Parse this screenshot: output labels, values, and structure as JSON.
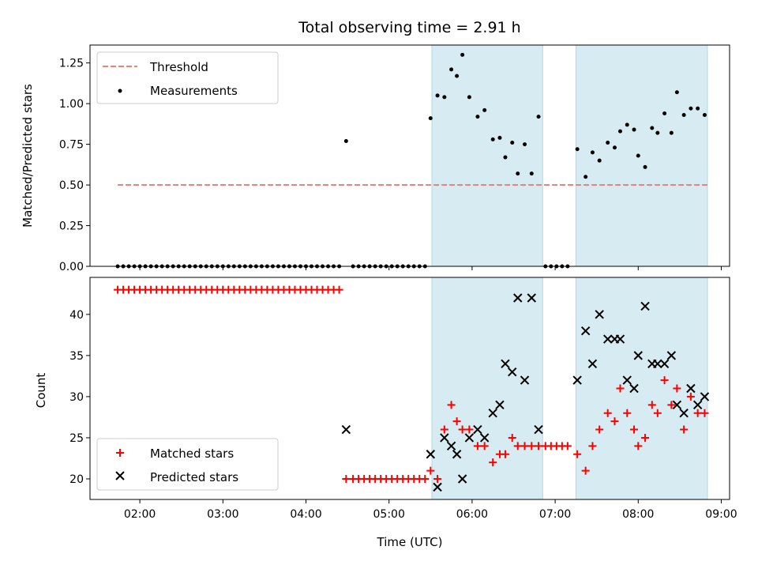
{
  "title": "Total observing time = 2.91 h",
  "colors": {
    "threshold": "#f08080",
    "measurements": "#000000",
    "matched": "#ff0000",
    "predicted": "#000000",
    "span_fill": "#add8e6"
  },
  "chart_data": [
    {
      "type": "scatter",
      "ylabel": "Matched/Predicted stars",
      "xlim": [
        "01:24",
        "09:06"
      ],
      "ylim": [
        0,
        1.36
      ],
      "yticks": [
        0.0,
        0.25,
        0.5,
        0.75,
        1.0,
        1.25
      ],
      "ytick_labels": [
        "0.00",
        "0.25",
        "0.50",
        "0.75",
        "1.00",
        "1.25"
      ],
      "observing_spans": [
        [
          "05:31",
          "06:51"
        ],
        [
          "07:15",
          "08:50"
        ]
      ],
      "threshold": {
        "name": "Threshold",
        "y": 0.5,
        "x_range": [
          "01:44",
          "08:50"
        ]
      },
      "legend": {
        "location": "top-left",
        "entries": [
          "Threshold",
          "Measurements"
        ]
      },
      "series": [
        {
          "name": "Measurements",
          "points": [
            [
              "01:44",
              0
            ],
            [
              "01:48",
              0
            ],
            [
              "01:52",
              0
            ],
            [
              "01:56",
              0
            ],
            [
              "02:00",
              0
            ],
            [
              "02:04",
              0
            ],
            [
              "02:08",
              0
            ],
            [
              "02:12",
              0
            ],
            [
              "02:16",
              0
            ],
            [
              "02:20",
              0
            ],
            [
              "02:24",
              0
            ],
            [
              "02:28",
              0
            ],
            [
              "02:32",
              0
            ],
            [
              "02:36",
              0
            ],
            [
              "02:40",
              0
            ],
            [
              "02:44",
              0
            ],
            [
              "02:48",
              0
            ],
            [
              "02:52",
              0
            ],
            [
              "02:56",
              0
            ],
            [
              "03:00",
              0
            ],
            [
              "03:04",
              0
            ],
            [
              "03:08",
              0
            ],
            [
              "03:12",
              0
            ],
            [
              "03:16",
              0
            ],
            [
              "03:20",
              0
            ],
            [
              "03:24",
              0
            ],
            [
              "03:28",
              0
            ],
            [
              "03:32",
              0
            ],
            [
              "03:36",
              0
            ],
            [
              "03:40",
              0
            ],
            [
              "03:44",
              0
            ],
            [
              "03:48",
              0
            ],
            [
              "03:52",
              0
            ],
            [
              "03:56",
              0
            ],
            [
              "04:00",
              0
            ],
            [
              "04:04",
              0
            ],
            [
              "04:08",
              0
            ],
            [
              "04:12",
              0
            ],
            [
              "04:16",
              0
            ],
            [
              "04:20",
              0
            ],
            [
              "04:24",
              0
            ],
            [
              "04:29",
              0.77
            ],
            [
              "04:34",
              0
            ],
            [
              "04:38",
              0
            ],
            [
              "04:42",
              0
            ],
            [
              "04:46",
              0
            ],
            [
              "04:50",
              0
            ],
            [
              "04:54",
              0
            ],
            [
              "04:58",
              0
            ],
            [
              "05:02",
              0
            ],
            [
              "05:06",
              0
            ],
            [
              "05:10",
              0
            ],
            [
              "05:14",
              0
            ],
            [
              "05:18",
              0
            ],
            [
              "05:22",
              0
            ],
            [
              "05:26",
              0
            ],
            [
              "05:30",
              0.91
            ],
            [
              "05:35",
              1.05
            ],
            [
              "05:40",
              1.04
            ],
            [
              "05:45",
              1.21
            ],
            [
              "05:49",
              1.17
            ],
            [
              "05:53",
              1.3
            ],
            [
              "05:58",
              1.04
            ],
            [
              "06:04",
              0.92
            ],
            [
              "06:09",
              0.96
            ],
            [
              "06:15",
              0.78
            ],
            [
              "06:20",
              0.79
            ],
            [
              "06:24",
              0.67
            ],
            [
              "06:29",
              0.76
            ],
            [
              "06:33",
              0.57
            ],
            [
              "06:38",
              0.75
            ],
            [
              "06:43",
              0.57
            ],
            [
              "06:48",
              0.92
            ],
            [
              "06:53",
              0
            ],
            [
              "06:57",
              0
            ],
            [
              "07:01",
              0
            ],
            [
              "07:05",
              0
            ],
            [
              "07:09",
              0
            ],
            [
              "07:16",
              0.72
            ],
            [
              "07:22",
              0.55
            ],
            [
              "07:27",
              0.7
            ],
            [
              "07:32",
              0.65
            ],
            [
              "07:38",
              0.76
            ],
            [
              "07:43",
              0.73
            ],
            [
              "07:47",
              0.83
            ],
            [
              "07:52",
              0.87
            ],
            [
              "07:57",
              0.84
            ],
            [
              "08:00",
              0.68
            ],
            [
              "08:05",
              0.61
            ],
            [
              "08:10",
              0.85
            ],
            [
              "08:14",
              0.82
            ],
            [
              "08:19",
              0.94
            ],
            [
              "08:24",
              0.82
            ],
            [
              "08:28",
              1.07
            ],
            [
              "08:33",
              0.93
            ],
            [
              "08:38",
              0.97
            ],
            [
              "08:43",
              0.97
            ],
            [
              "08:48",
              0.93
            ]
          ]
        }
      ]
    },
    {
      "type": "scatter",
      "xlabel": "Time (UTC)",
      "ylabel": "Count",
      "xlim": [
        "01:24",
        "09:06"
      ],
      "ylim": [
        17.5,
        44.5
      ],
      "xticks": [
        "02:00",
        "03:00",
        "04:00",
        "05:00",
        "06:00",
        "07:00",
        "08:00",
        "09:00"
      ],
      "yticks": [
        20,
        25,
        30,
        35,
        40
      ],
      "ytick_labels": [
        "20",
        "25",
        "30",
        "35",
        "40"
      ],
      "observing_spans": [
        [
          "05:31",
          "06:51"
        ],
        [
          "07:15",
          "08:50"
        ]
      ],
      "legend": {
        "location": "bottom-left",
        "entries": [
          "Matched stars",
          "Predicted stars"
        ]
      },
      "series": [
        {
          "name": "Matched stars",
          "marker": "plus",
          "points": [
            [
              "01:44",
              43
            ],
            [
              "01:48",
              43
            ],
            [
              "01:52",
              43
            ],
            [
              "01:56",
              43
            ],
            [
              "02:00",
              43
            ],
            [
              "02:04",
              43
            ],
            [
              "02:08",
              43
            ],
            [
              "02:12",
              43
            ],
            [
              "02:16",
              43
            ],
            [
              "02:20",
              43
            ],
            [
              "02:24",
              43
            ],
            [
              "02:28",
              43
            ],
            [
              "02:32",
              43
            ],
            [
              "02:36",
              43
            ],
            [
              "02:40",
              43
            ],
            [
              "02:44",
              43
            ],
            [
              "02:48",
              43
            ],
            [
              "02:52",
              43
            ],
            [
              "02:56",
              43
            ],
            [
              "03:00",
              43
            ],
            [
              "03:04",
              43
            ],
            [
              "03:08",
              43
            ],
            [
              "03:12",
              43
            ],
            [
              "03:16",
              43
            ],
            [
              "03:20",
              43
            ],
            [
              "03:24",
              43
            ],
            [
              "03:28",
              43
            ],
            [
              "03:32",
              43
            ],
            [
              "03:36",
              43
            ],
            [
              "03:40",
              43
            ],
            [
              "03:44",
              43
            ],
            [
              "03:48",
              43
            ],
            [
              "03:52",
              43
            ],
            [
              "03:56",
              43
            ],
            [
              "04:00",
              43
            ],
            [
              "04:04",
              43
            ],
            [
              "04:08",
              43
            ],
            [
              "04:12",
              43
            ],
            [
              "04:16",
              43
            ],
            [
              "04:20",
              43
            ],
            [
              "04:24",
              43
            ],
            [
              "04:29",
              20
            ],
            [
              "04:34",
              20
            ],
            [
              "04:38",
              20
            ],
            [
              "04:42",
              20
            ],
            [
              "04:46",
              20
            ],
            [
              "04:50",
              20
            ],
            [
              "04:54",
              20
            ],
            [
              "04:58",
              20
            ],
            [
              "05:02",
              20
            ],
            [
              "05:06",
              20
            ],
            [
              "05:10",
              20
            ],
            [
              "05:14",
              20
            ],
            [
              "05:18",
              20
            ],
            [
              "05:22",
              20
            ],
            [
              "05:26",
              20
            ],
            [
              "05:30",
              21
            ],
            [
              "05:35",
              20
            ],
            [
              "05:40",
              26
            ],
            [
              "05:45",
              29
            ],
            [
              "05:49",
              27
            ],
            [
              "05:53",
              26
            ],
            [
              "05:58",
              26
            ],
            [
              "06:04",
              24
            ],
            [
              "06:09",
              24
            ],
            [
              "06:15",
              22
            ],
            [
              "06:20",
              23
            ],
            [
              "06:24",
              23
            ],
            [
              "06:29",
              25
            ],
            [
              "06:33",
              24
            ],
            [
              "06:38",
              24
            ],
            [
              "06:43",
              24
            ],
            [
              "06:48",
              24
            ],
            [
              "06:53",
              24
            ],
            [
              "06:57",
              24
            ],
            [
              "07:01",
              24
            ],
            [
              "07:05",
              24
            ],
            [
              "07:09",
              24
            ],
            [
              "07:16",
              23
            ],
            [
              "07:22",
              21
            ],
            [
              "07:27",
              24
            ],
            [
              "07:32",
              26
            ],
            [
              "07:38",
              28
            ],
            [
              "07:43",
              27
            ],
            [
              "07:47",
              31
            ],
            [
              "07:52",
              28
            ],
            [
              "07:57",
              26
            ],
            [
              "08:00",
              24
            ],
            [
              "08:05",
              25
            ],
            [
              "08:10",
              29
            ],
            [
              "08:14",
              28
            ],
            [
              "08:19",
              32
            ],
            [
              "08:24",
              29
            ],
            [
              "08:28",
              31
            ],
            [
              "08:33",
              26
            ],
            [
              "08:38",
              30
            ],
            [
              "08:43",
              28
            ],
            [
              "08:48",
              28
            ]
          ]
        },
        {
          "name": "Predicted stars",
          "marker": "x",
          "points": [
            [
              "04:29",
              26
            ],
            [
              "05:30",
              23
            ],
            [
              "05:35",
              19
            ],
            [
              "05:40",
              25
            ],
            [
              "05:45",
              24
            ],
            [
              "05:49",
              23
            ],
            [
              "05:53",
              20
            ],
            [
              "05:58",
              25
            ],
            [
              "06:04",
              26
            ],
            [
              "06:09",
              25
            ],
            [
              "06:15",
              28
            ],
            [
              "06:20",
              29
            ],
            [
              "06:24",
              34
            ],
            [
              "06:29",
              33
            ],
            [
              "06:33",
              42
            ],
            [
              "06:38",
              32
            ],
            [
              "06:43",
              42
            ],
            [
              "06:48",
              26
            ],
            [
              "07:16",
              32
            ],
            [
              "07:22",
              38
            ],
            [
              "07:27",
              34
            ],
            [
              "07:32",
              40
            ],
            [
              "07:38",
              37
            ],
            [
              "07:43",
              37
            ],
            [
              "07:47",
              37
            ],
            [
              "07:52",
              32
            ],
            [
              "07:57",
              31
            ],
            [
              "08:00",
              35
            ],
            [
              "08:05",
              41
            ],
            [
              "08:10",
              34
            ],
            [
              "08:14",
              34
            ],
            [
              "08:19",
              34
            ],
            [
              "08:24",
              35
            ],
            [
              "08:28",
              29
            ],
            [
              "08:33",
              28
            ],
            [
              "08:38",
              31
            ],
            [
              "08:43",
              29
            ],
            [
              "08:48",
              30
            ]
          ]
        }
      ]
    }
  ]
}
